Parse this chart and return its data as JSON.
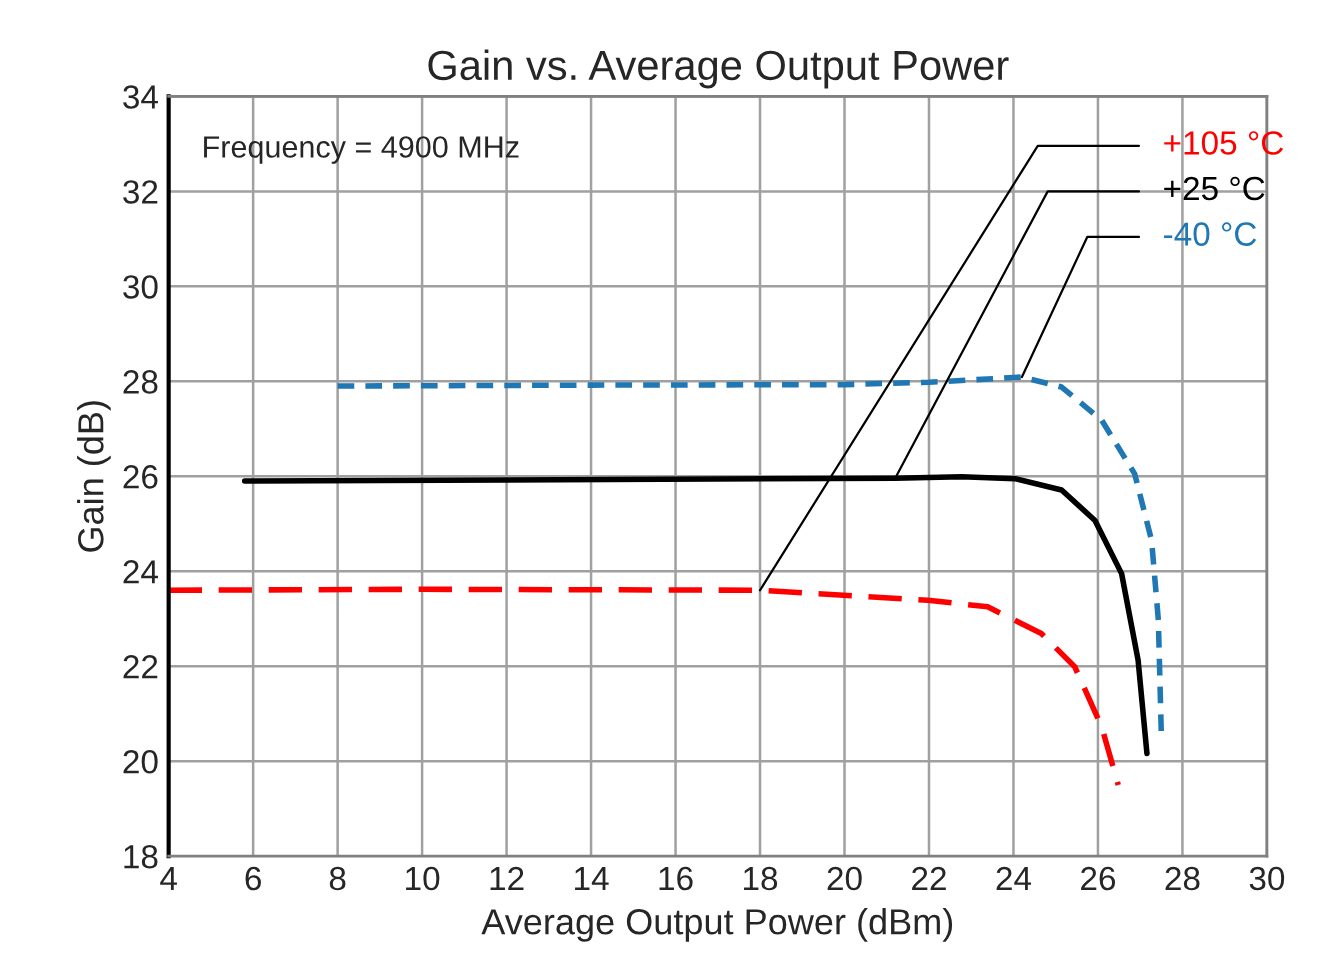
{
  "chart_data": {
    "type": "line",
    "title": "Gain vs. Average Output Power",
    "xlabel": "Average Output Power (dBm)",
    "ylabel": "Gain (dB)",
    "annotations": [
      "Frequency = 4900 MHz"
    ],
    "xlim": [
      4,
      30
    ],
    "xticks": [
      4,
      6,
      8,
      10,
      12,
      14,
      16,
      18,
      20,
      22,
      24,
      26,
      28,
      30
    ],
    "ylim": [
      18,
      34
    ],
    "yticks": [
      18,
      20,
      22,
      24,
      26,
      28,
      30,
      32,
      34
    ],
    "grid": true,
    "legend": false,
    "marker": "none",
    "series": [
      {
        "name": "+105 °C",
        "color": "#ff0000",
        "line_style": "long dashed",
        "x": [
          4,
          10,
          18,
          21.97,
          23.39,
          24.66,
          25.45,
          26.09,
          26.48
        ],
        "values": [
          23.6,
          23.62,
          23.6,
          23.39,
          23.25,
          22.69,
          21.99,
          20.72,
          19.5
        ]
      },
      {
        "name": "+25 °C",
        "color": "#000000",
        "line_style": "solid",
        "x": [
          5.8,
          12,
          21.2,
          22.77,
          24.03,
          25.14,
          25.93,
          26.56,
          26.95,
          27.16
        ],
        "values": [
          25.9,
          25.92,
          25.96,
          25.99,
          25.95,
          25.71,
          25.07,
          23.95,
          22.13,
          20.16
        ]
      },
      {
        "name": "-40 °C",
        "color": "#1f77b4",
        "line_style": "dashed",
        "x": [
          8,
          14,
          20,
          22,
          23,
          24.2,
          25.14,
          26.09,
          26.87,
          27.27,
          27.43,
          27.5
        ],
        "values": [
          27.9,
          27.92,
          27.93,
          27.98,
          28.03,
          28.09,
          27.88,
          27.18,
          26.05,
          24.65,
          22.97,
          20.58
        ]
      }
    ]
  }
}
